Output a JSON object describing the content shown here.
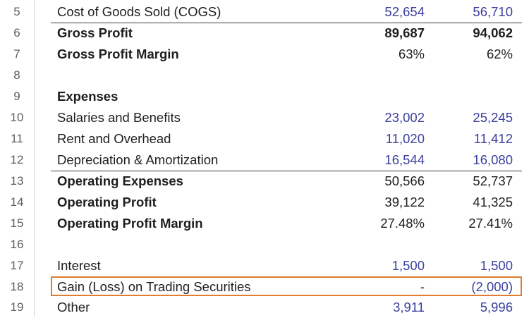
{
  "rows": [
    {
      "num": "5",
      "label": "Cost of Goods Sold (COGS)",
      "v1": "52,654",
      "v2": "56,710"
    },
    {
      "num": "6",
      "label": "Gross Profit",
      "v1": "89,687",
      "v2": "94,062"
    },
    {
      "num": "7",
      "label": "Gross Profit Margin",
      "v1": "63%",
      "v2": "62%"
    },
    {
      "num": "8",
      "label": "",
      "v1": "",
      "v2": ""
    },
    {
      "num": "9",
      "label": "Expenses",
      "v1": "",
      "v2": ""
    },
    {
      "num": "10",
      "label": "Salaries and Benefits",
      "v1": "23,002",
      "v2": "25,245"
    },
    {
      "num": "11",
      "label": "Rent and Overhead",
      "v1": "11,020",
      "v2": "11,412"
    },
    {
      "num": "12",
      "label": "Depreciation & Amortization",
      "v1": "16,544",
      "v2": "16,080"
    },
    {
      "num": "13",
      "label": "Operating Expenses",
      "v1": "50,566",
      "v2": "52,737"
    },
    {
      "num": "14",
      "label": "Operating Profit",
      "v1": "39,122",
      "v2": "41,325"
    },
    {
      "num": "15",
      "label": "Operating Profit Margin",
      "v1": "27.48%",
      "v2": "27.41%"
    },
    {
      "num": "16",
      "label": "",
      "v1": "",
      "v2": ""
    },
    {
      "num": "17",
      "label": "Interest",
      "v1": "1,500",
      "v2": "1,500"
    },
    {
      "num": "18",
      "label": "Gain (Loss) on Trading Securities",
      "v1": "-",
      "v2": "(2,000)"
    },
    {
      "num": "19",
      "label": "Other",
      "v1": "3,911",
      "v2": "5,996"
    }
  ],
  "colors": {
    "input_value": "#3a3fa0",
    "calculated_value": "#1e1e1e",
    "highlight_border": "#e07b30"
  }
}
